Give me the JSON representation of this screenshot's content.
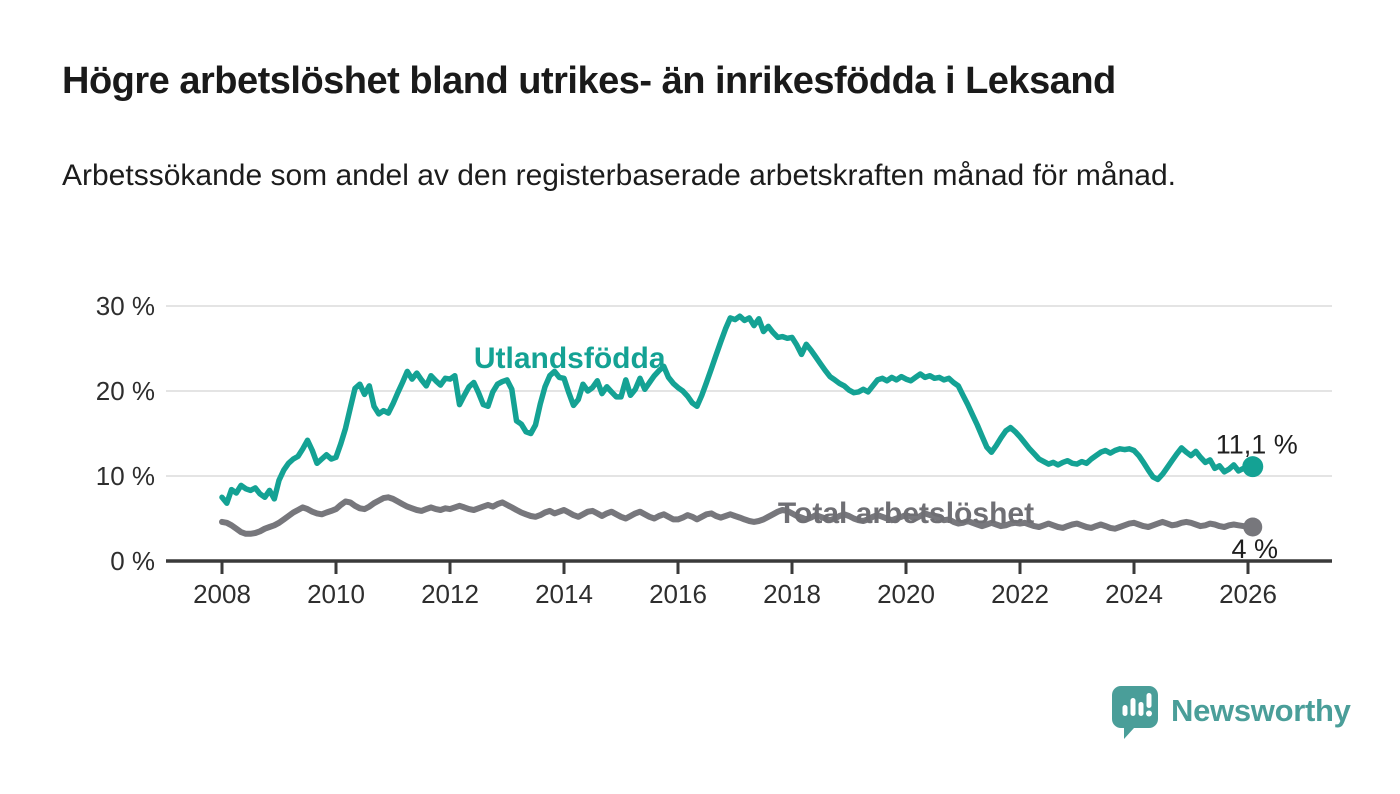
{
  "header": {
    "title": "Högre arbetslöshet bland utrikes- än inrikesfödda i Leksand",
    "subtitle": "Arbetssökande som andel av den registerbaserade arbetskraften månad för månad."
  },
  "footer": {
    "brand": "Newsworthy"
  },
  "colors": {
    "accent_teal": "#14a294",
    "line_gray": "#77777c",
    "brand_teal": "#4a9e99",
    "axis": "#3a3a3a",
    "grid": "#dcdcdc",
    "text_dark": "#1f1f1f",
    "tick_text": "#2e2e2e"
  },
  "chart_data": {
    "type": "line",
    "title": "Högre arbetslöshet bland utrikes- än inrikesfödda i Leksand",
    "subtitle": "Arbetssökande som andel av den registerbaserade arbetskraften månad för månad.",
    "frequency": "monthly",
    "x_start_year": 2008,
    "x_start_month": 1,
    "x_end_label": "2026-02",
    "x_tick_years": [
      2008,
      2010,
      2012,
      2014,
      2016,
      2018,
      2020,
      2022,
      2024,
      2026
    ],
    "y_ticks": [
      {
        "value": 0,
        "label": "0 %"
      },
      {
        "value": 10,
        "label": "10 %"
      },
      {
        "value": 20,
        "label": "20 %"
      },
      {
        "value": 30,
        "label": "30 %"
      }
    ],
    "ylim": [
      0,
      32.5
    ],
    "grid": true,
    "legend": "inline-labels",
    "series": [
      {
        "name": "Utlandsfödda",
        "color": "#14a294",
        "end_label": "11,1 %",
        "end_value": 11.1,
        "label_anchor": {
          "year": 2014.1,
          "value": 22.7
        },
        "values": [
          7.5,
          6.8,
          8.4,
          8.0,
          8.9,
          8.5,
          8.3,
          8.6,
          7.9,
          7.5,
          8.3,
          7.3,
          9.5,
          10.7,
          11.5,
          12.0,
          12.3,
          13.2,
          14.2,
          13.0,
          11.5,
          12.0,
          12.5,
          12.0,
          12.2,
          13.8,
          15.6,
          18.0,
          20.3,
          20.8,
          19.6,
          20.6,
          18.2,
          17.3,
          17.7,
          17.4,
          18.5,
          19.8,
          21.0,
          22.3,
          21.4,
          22.1,
          21.3,
          20.6,
          21.8,
          21.2,
          20.7,
          21.5,
          21.4,
          21.8,
          18.4,
          19.5,
          20.5,
          21.0,
          19.8,
          18.4,
          18.2,
          19.9,
          20.8,
          21.1,
          21.3,
          20.2,
          16.5,
          16.1,
          15.2,
          15.0,
          16.0,
          18.5,
          20.5,
          21.8,
          22.3,
          21.6,
          21.5,
          19.8,
          18.3,
          19.0,
          20.8,
          20.0,
          20.4,
          21.2,
          19.7,
          20.5,
          19.9,
          19.3,
          19.3,
          21.3,
          19.5,
          20.2,
          21.5,
          20.2,
          21.0,
          21.8,
          22.4,
          22.9,
          21.6,
          20.9,
          20.4,
          20.0,
          19.4,
          18.6,
          18.2,
          19.5,
          21.0,
          22.6,
          24.2,
          25.8,
          27.3,
          28.6,
          28.4,
          28.8,
          28.3,
          28.6,
          27.7,
          28.5,
          27.0,
          27.6,
          26.9,
          26.3,
          26.4,
          26.2,
          26.3,
          25.4,
          24.3,
          25.5,
          24.8,
          24.0,
          23.2,
          22.4,
          21.7,
          21.3,
          20.9,
          20.6,
          20.1,
          19.8,
          19.9,
          20.2,
          19.9,
          20.6,
          21.3,
          21.5,
          21.2,
          21.6,
          21.3,
          21.7,
          21.4,
          21.2,
          21.6,
          22.0,
          21.6,
          21.8,
          21.5,
          21.6,
          21.3,
          21.5,
          21.0,
          20.6,
          19.5,
          18.4,
          17.2,
          16.0,
          14.7,
          13.4,
          12.8,
          13.6,
          14.5,
          15.3,
          15.7,
          15.2,
          14.6,
          13.9,
          13.2,
          12.6,
          12.0,
          11.7,
          11.4,
          11.6,
          11.3,
          11.6,
          11.8,
          11.5,
          11.4,
          11.7,
          11.5,
          12.0,
          12.4,
          12.8,
          13.0,
          12.7,
          13.0,
          13.2,
          13.1,
          13.2,
          13.0,
          12.4,
          11.6,
          10.7,
          9.9,
          9.6,
          10.2,
          11.0,
          11.8,
          12.6,
          13.3,
          12.8,
          12.4,
          12.9,
          12.2,
          11.6,
          11.9,
          10.9,
          11.2,
          10.5,
          10.8,
          11.3,
          10.6,
          10.9,
          10.6,
          11.1
        ]
      },
      {
        "name": "Total arbetslöshet",
        "color": "#77777c",
        "end_label": "4 %",
        "end_value": 4.0,
        "label_anchor": {
          "year": 2020.0,
          "value": 4.47
        },
        "values": [
          4.6,
          4.5,
          4.2,
          3.8,
          3.4,
          3.2,
          3.2,
          3.3,
          3.5,
          3.8,
          4.0,
          4.2,
          4.5,
          4.9,
          5.3,
          5.7,
          6.0,
          6.3,
          6.1,
          5.8,
          5.6,
          5.5,
          5.7,
          5.9,
          6.1,
          6.6,
          7.0,
          6.9,
          6.5,
          6.2,
          6.1,
          6.4,
          6.8,
          7.1,
          7.4,
          7.5,
          7.3,
          7.0,
          6.7,
          6.4,
          6.2,
          6.0,
          5.9,
          6.1,
          6.3,
          6.1,
          6.0,
          6.2,
          6.1,
          6.3,
          6.5,
          6.3,
          6.1,
          6.0,
          6.2,
          6.4,
          6.6,
          6.4,
          6.7,
          6.9,
          6.6,
          6.3,
          6.0,
          5.7,
          5.5,
          5.3,
          5.2,
          5.4,
          5.7,
          5.9,
          5.6,
          5.8,
          6.0,
          5.7,
          5.4,
          5.2,
          5.5,
          5.8,
          5.9,
          5.6,
          5.3,
          5.6,
          5.8,
          5.5,
          5.2,
          5.0,
          5.3,
          5.6,
          5.8,
          5.5,
          5.2,
          5.0,
          5.3,
          5.5,
          5.2,
          4.9,
          4.9,
          5.1,
          5.4,
          5.2,
          4.9,
          5.2,
          5.5,
          5.6,
          5.3,
          5.1,
          5.3,
          5.5,
          5.3,
          5.1,
          4.9,
          4.7,
          4.6,
          4.7,
          4.9,
          5.2,
          5.5,
          5.8,
          6.0,
          5.9,
          5.6,
          5.3,
          5.1,
          4.9,
          5.1,
          5.4,
          5.2,
          5.0,
          4.8,
          5.0,
          5.3,
          5.5,
          5.3,
          5.0,
          4.8,
          4.7,
          4.9,
          5.2,
          5.4,
          5.2,
          5.0,
          4.8,
          5.0,
          5.2,
          5.4,
          5.2,
          5.0,
          5.3,
          5.6,
          5.4,
          5.2,
          5.0,
          4.8,
          4.9,
          4.6,
          4.4,
          4.5,
          4.7,
          4.5,
          4.3,
          4.1,
          4.3,
          4.5,
          4.3,
          4.1,
          4.2,
          4.4,
          4.5,
          4.4,
          4.5,
          4.3,
          4.1,
          4.0,
          4.2,
          4.4,
          4.2,
          4.0,
          3.9,
          4.1,
          4.3,
          4.4,
          4.2,
          4.0,
          3.9,
          4.1,
          4.3,
          4.1,
          3.9,
          3.8,
          4.0,
          4.2,
          4.4,
          4.5,
          4.3,
          4.1,
          4.0,
          4.2,
          4.4,
          4.6,
          4.4,
          4.2,
          4.3,
          4.5,
          4.6,
          4.5,
          4.3,
          4.1,
          4.2,
          4.4,
          4.3,
          4.1,
          4.0,
          4.2,
          4.3,
          4.2,
          4.1,
          4.0,
          4.0
        ]
      }
    ]
  }
}
